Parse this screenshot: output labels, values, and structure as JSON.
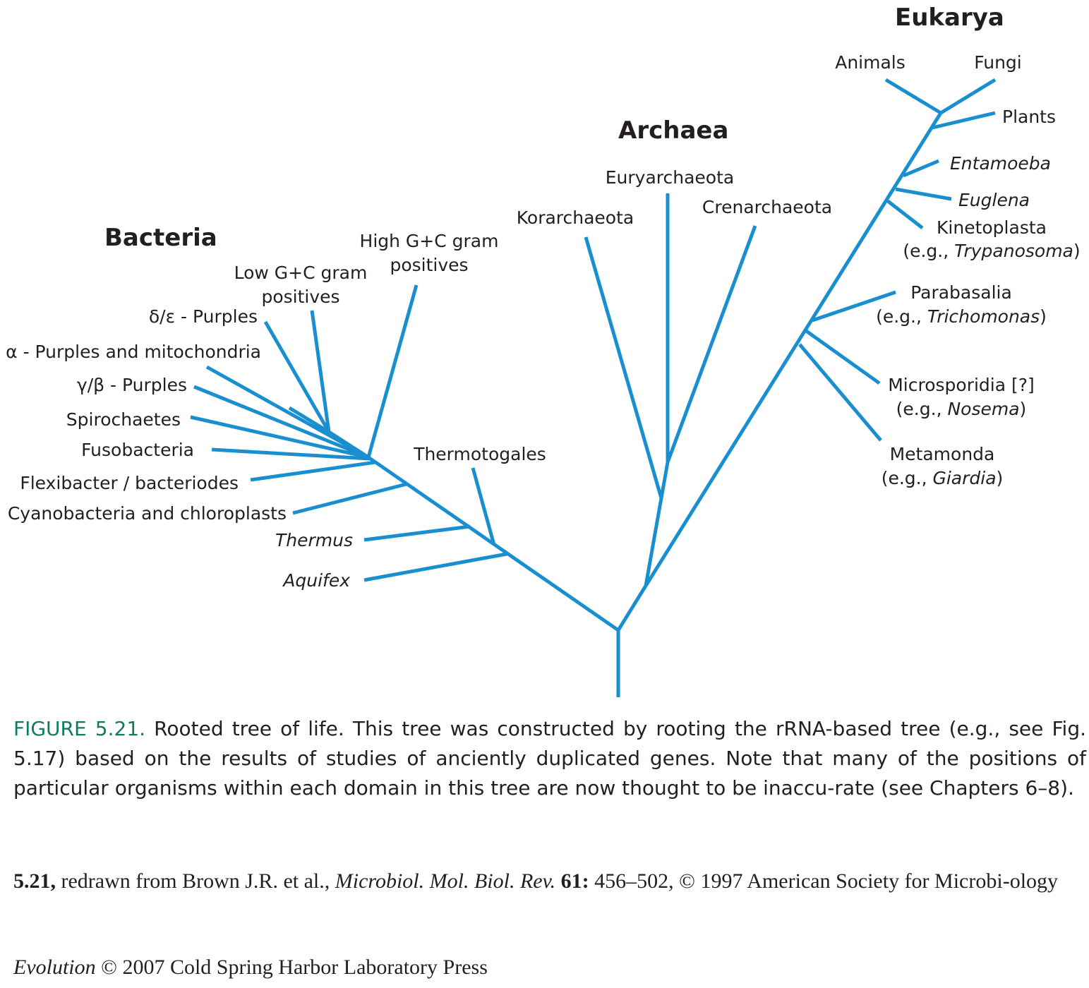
{
  "domains": {
    "bacteria": "Bacteria",
    "archaea": "Archaea",
    "eukarya": "Eukarya"
  },
  "bacteria": {
    "delta_epsilon": "δ/ε - Purples",
    "alpha": "α - Purples and mitochondria",
    "gamma_beta": "γ/β - Purples",
    "spirochaetes": "Spirochaetes",
    "fusobacteria": "Fusobacteria",
    "flexibacter": "Flexibacter / bacteriodes",
    "cyanobacteria": "Cyanobacteria and chloroplasts",
    "thermus": "Thermus",
    "aquifex": "Aquifex",
    "low_gc_line1": "Low G+C gram",
    "low_gc_line2": "positives",
    "high_gc_line1": "High G+C gram",
    "high_gc_line2": "positives",
    "thermotogales": "Thermotogales"
  },
  "archaea": {
    "korarchaeota": "Korarchaeota",
    "euryarchaeota": "Euryarchaeota",
    "crenarchaeota": "Crenarchaeota"
  },
  "eukarya": {
    "animals": "Animals",
    "fungi": "Fungi",
    "plants": "Plants",
    "entamoeba": "Entamoeba",
    "euglena": "Euglena",
    "kinetoplasta": "Kinetoplasta",
    "kinetoplasta_eg_prefix": "(e.g., ",
    "kinetoplasta_eg_name": "Trypanosoma",
    "kinetoplasta_eg_suffix": ")",
    "parabasalia": "Parabasalia",
    "parabasalia_eg_prefix": "(e.g., ",
    "parabasalia_eg_name": "Trichomonas",
    "parabasalia_eg_suffix": ")",
    "microsporidia": "Microsporidia [?]",
    "microsporidia_eg_prefix": "(e.g., ",
    "microsporidia_eg_name": "Nosema",
    "microsporidia_eg_suffix": ")",
    "metamonda": "Metamonda",
    "metamonda_eg_prefix": "(e.g., ",
    "metamonda_eg_name": "Giardia",
    "metamonda_eg_suffix": ")"
  },
  "caption": {
    "figure_label": "FIGURE 5.21.",
    "text": " Rooted tree of life. This tree was constructed by rooting the rRNA-based tree (e.g., see Fig. 5.17) based on the results of studies of anciently duplicated genes. Note that many of the positions of particular organisms within each domain in this tree are now thought to be inaccu-rate (see Chapters 6–8)."
  },
  "credit": {
    "figure": "5.21,",
    "text1": " redrawn from Brown J.R. et al., ",
    "journal": "Microbiol. Mol. Biol. Rev.",
    "volume": " 61:",
    "text2": " 456–502, © 1997 American Society for Microbi-ology"
  },
  "press": {
    "title": "Evolution",
    "text": " © 2007 Cold Spring Harbor Laboratory Press"
  },
  "colors": {
    "branch": "#1a8fd0",
    "figure_label": "#127a63",
    "text": "#231f20"
  }
}
